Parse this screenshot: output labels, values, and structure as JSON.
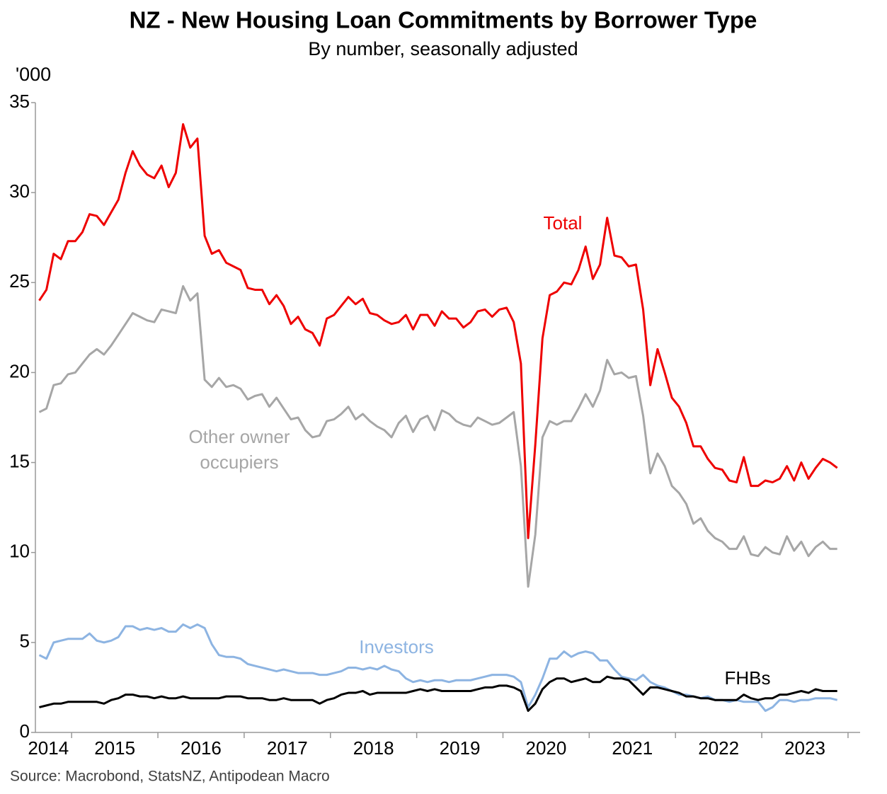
{
  "chart_data": {
    "type": "line",
    "title": "NZ - New Housing Loan Commitments by Borrower Type",
    "subtitle": "By number, seasonally adjusted",
    "y_axis_label": "'000",
    "source": "Source: Macrobond, StatsNZ, Antipodean Macro",
    "xlim": [
      2014.58,
      2024.14
    ],
    "xticks": [
      2015,
      2016,
      2017,
      2018,
      2019,
      2020,
      2021,
      2022,
      2023,
      2024
    ],
    "xlabels": [
      {
        "value": 2014.73,
        "label": "2014"
      },
      {
        "value": 2015.5,
        "label": "2015"
      },
      {
        "value": 2016.5,
        "label": "2016"
      },
      {
        "value": 2017.5,
        "label": "2017"
      },
      {
        "value": 2018.5,
        "label": "2018"
      },
      {
        "value": 2019.5,
        "label": "2019"
      },
      {
        "value": 2020.5,
        "label": "2020"
      },
      {
        "value": 2021.5,
        "label": "2021"
      },
      {
        "value": 2022.5,
        "label": "2022"
      },
      {
        "value": 2023.5,
        "label": "2023"
      }
    ],
    "ylim": [
      0,
      35
    ],
    "yticks": [
      0,
      5,
      10,
      15,
      20,
      25,
      30,
      35
    ],
    "grid": false,
    "x": [
      2014.625,
      2014.708,
      2014.792,
      2014.875,
      2014.958,
      2015.042,
      2015.125,
      2015.208,
      2015.292,
      2015.375,
      2015.458,
      2015.542,
      2015.625,
      2015.708,
      2015.792,
      2015.875,
      2015.958,
      2016.042,
      2016.125,
      2016.208,
      2016.292,
      2016.375,
      2016.458,
      2016.542,
      2016.625,
      2016.708,
      2016.792,
      2016.875,
      2016.958,
      2017.042,
      2017.125,
      2017.208,
      2017.292,
      2017.375,
      2017.458,
      2017.542,
      2017.625,
      2017.708,
      2017.792,
      2017.875,
      2017.958,
      2018.042,
      2018.125,
      2018.208,
      2018.292,
      2018.375,
      2018.458,
      2018.542,
      2018.625,
      2018.708,
      2018.792,
      2018.875,
      2018.958,
      2019.042,
      2019.125,
      2019.208,
      2019.292,
      2019.375,
      2019.458,
      2019.542,
      2019.625,
      2019.708,
      2019.792,
      2019.875,
      2019.958,
      2020.042,
      2020.125,
      2020.208,
      2020.292,
      2020.375,
      2020.458,
      2020.542,
      2020.625,
      2020.708,
      2020.792,
      2020.875,
      2020.958,
      2021.042,
      2021.125,
      2021.208,
      2021.292,
      2021.375,
      2021.458,
      2021.542,
      2021.625,
      2021.708,
      2021.792,
      2021.875,
      2021.958,
      2022.042,
      2022.125,
      2022.208,
      2022.292,
      2022.375,
      2022.458,
      2022.542,
      2022.625,
      2022.708,
      2022.792,
      2022.875,
      2022.958,
      2023.042,
      2023.125,
      2023.208,
      2023.292,
      2023.375,
      2023.458,
      2023.542,
      2023.625,
      2023.708,
      2023.792,
      2023.875
    ],
    "series": [
      {
        "name": "Total",
        "color": "#ee0000",
        "values": [
          24.0,
          24.6,
          26.6,
          26.3,
          27.3,
          27.3,
          27.8,
          28.8,
          28.7,
          28.2,
          28.9,
          29.6,
          31.1,
          32.3,
          31.5,
          31.0,
          30.8,
          31.5,
          30.3,
          31.1,
          33.8,
          32.5,
          33.0,
          27.6,
          26.6,
          26.8,
          26.1,
          25.9,
          25.7,
          24.7,
          24.6,
          24.6,
          23.8,
          24.3,
          23.7,
          22.7,
          23.1,
          22.4,
          22.2,
          21.5,
          23.0,
          23.2,
          23.7,
          24.2,
          23.8,
          24.1,
          23.3,
          23.2,
          22.9,
          22.7,
          22.8,
          23.2,
          22.4,
          23.2,
          23.2,
          22.6,
          23.4,
          23.0,
          23.0,
          22.5,
          22.8,
          23.4,
          23.5,
          23.1,
          23.5,
          23.6,
          22.8,
          20.5,
          10.8,
          16.0,
          21.9,
          24.3,
          24.5,
          25.0,
          24.9,
          25.7,
          27.0,
          25.2,
          26.0,
          28.6,
          26.5,
          26.4,
          25.9,
          26.0,
          23.5,
          19.3,
          21.3,
          20.0,
          18.6,
          18.1,
          17.2,
          15.9,
          15.9,
          15.2,
          14.7,
          14.6,
          14.0,
          13.9,
          15.3,
          13.7,
          13.7,
          14.0,
          13.9,
          14.1,
          14.8,
          14.0,
          15.0,
          14.1,
          14.7,
          15.2,
          15.0,
          14.7
        ]
      },
      {
        "name": "Other owner occupiers",
        "color": "#a6a6a6",
        "values": [
          17.8,
          18.0,
          19.3,
          19.4,
          19.9,
          20.0,
          20.5,
          21.0,
          21.3,
          21.0,
          21.5,
          22.1,
          22.7,
          23.3,
          23.1,
          22.9,
          22.8,
          23.5,
          23.4,
          23.3,
          24.8,
          24.0,
          24.4,
          19.6,
          19.2,
          19.7,
          19.2,
          19.3,
          19.1,
          18.5,
          18.7,
          18.8,
          18.1,
          18.6,
          18.0,
          17.4,
          17.5,
          16.8,
          16.4,
          16.5,
          17.3,
          17.4,
          17.7,
          18.1,
          17.4,
          17.7,
          17.3,
          17.0,
          16.8,
          16.4,
          17.2,
          17.6,
          16.7,
          17.4,
          17.6,
          16.8,
          17.9,
          17.7,
          17.3,
          17.1,
          17.0,
          17.5,
          17.3,
          17.1,
          17.2,
          17.5,
          17.8,
          14.8,
          8.1,
          11.0,
          16.4,
          17.3,
          17.1,
          17.3,
          17.3,
          18.0,
          18.8,
          18.1,
          19.0,
          20.7,
          19.9,
          20.0,
          19.7,
          19.8,
          17.6,
          14.4,
          15.5,
          14.8,
          13.7,
          13.3,
          12.7,
          11.6,
          11.9,
          11.2,
          10.8,
          10.6,
          10.2,
          10.2,
          10.9,
          9.9,
          9.8,
          10.3,
          10.0,
          9.9,
          10.9,
          10.1,
          10.6,
          9.8,
          10.3,
          10.6,
          10.2,
          10.2
        ]
      },
      {
        "name": "Investors",
        "color": "#8db4e2",
        "values": [
          4.3,
          4.1,
          5.0,
          5.1,
          5.2,
          5.2,
          5.2,
          5.5,
          5.1,
          5.0,
          5.1,
          5.3,
          5.9,
          5.9,
          5.7,
          5.8,
          5.7,
          5.8,
          5.6,
          5.6,
          6.0,
          5.8,
          6.0,
          5.8,
          4.9,
          4.3,
          4.2,
          4.2,
          4.1,
          3.8,
          3.7,
          3.6,
          3.5,
          3.4,
          3.5,
          3.4,
          3.3,
          3.3,
          3.3,
          3.2,
          3.2,
          3.3,
          3.4,
          3.6,
          3.6,
          3.5,
          3.6,
          3.5,
          3.7,
          3.5,
          3.4,
          3.0,
          2.8,
          2.9,
          2.8,
          2.9,
          2.9,
          2.8,
          2.9,
          2.9,
          2.9,
          3.0,
          3.1,
          3.2,
          3.2,
          3.2,
          3.1,
          2.8,
          1.4,
          2.1,
          3.0,
          4.1,
          4.1,
          4.5,
          4.2,
          4.4,
          4.5,
          4.4,
          4.0,
          4.0,
          3.5,
          3.1,
          3.0,
          2.9,
          3.2,
          2.8,
          2.6,
          2.5,
          2.3,
          2.1,
          2.1,
          2.0,
          1.9,
          2.0,
          1.8,
          1.8,
          1.7,
          1.8,
          1.7,
          1.7,
          1.7,
          1.2,
          1.4,
          1.8,
          1.8,
          1.7,
          1.8,
          1.8,
          1.9,
          1.9,
          1.9,
          1.8
        ]
      },
      {
        "name": "FHBs",
        "color": "#000000",
        "values": [
          1.4,
          1.5,
          1.6,
          1.6,
          1.7,
          1.7,
          1.7,
          1.7,
          1.7,
          1.6,
          1.8,
          1.9,
          2.1,
          2.1,
          2.0,
          2.0,
          1.9,
          2.0,
          1.9,
          1.9,
          2.0,
          1.9,
          1.9,
          1.9,
          1.9,
          1.9,
          2.0,
          2.0,
          2.0,
          1.9,
          1.9,
          1.9,
          1.8,
          1.8,
          1.9,
          1.8,
          1.8,
          1.8,
          1.8,
          1.6,
          1.8,
          1.9,
          2.1,
          2.2,
          2.2,
          2.3,
          2.1,
          2.2,
          2.2,
          2.2,
          2.2,
          2.2,
          2.3,
          2.4,
          2.3,
          2.4,
          2.3,
          2.3,
          2.3,
          2.3,
          2.3,
          2.4,
          2.5,
          2.5,
          2.6,
          2.6,
          2.5,
          2.3,
          1.2,
          1.6,
          2.4,
          2.8,
          3.0,
          3.0,
          2.8,
          2.9,
          3.0,
          2.8,
          2.8,
          3.1,
          3.0,
          3.0,
          2.9,
          2.5,
          2.1,
          2.5,
          2.5,
          2.4,
          2.3,
          2.2,
          2.0,
          2.0,
          1.9,
          1.9,
          1.8,
          1.8,
          1.8,
          1.8,
          2.1,
          1.9,
          1.8,
          1.9,
          1.9,
          2.1,
          2.1,
          2.2,
          2.3,
          2.2,
          2.4,
          2.3,
          2.3,
          2.3
        ]
      }
    ]
  }
}
